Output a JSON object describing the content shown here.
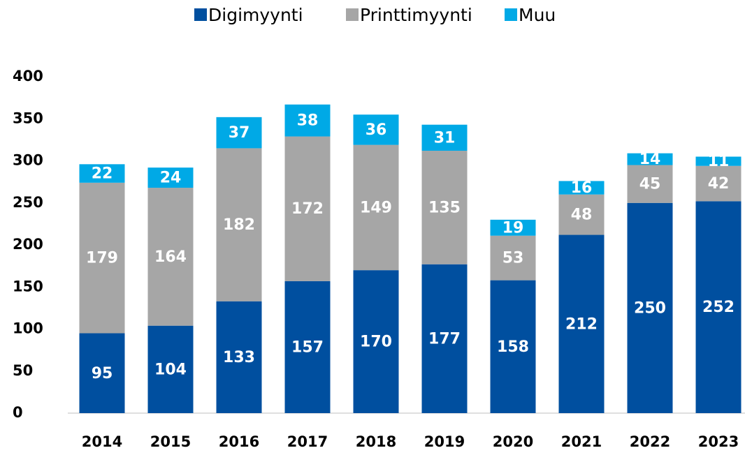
{
  "chart_data": {
    "type": "stacked_bar",
    "categories": [
      "2014",
      "2015",
      "2016",
      "2017",
      "2018",
      "2019",
      "2020",
      "2021",
      "2022",
      "2023"
    ],
    "series": [
      {
        "name": "Digimyynti",
        "color": "#004f9f",
        "values": [
          95,
          104,
          133,
          157,
          170,
          177,
          158,
          212,
          250,
          252
        ]
      },
      {
        "name": "Printtimyynti",
        "color": "#a6a6a6",
        "values": [
          179,
          164,
          182,
          172,
          149,
          135,
          53,
          48,
          45,
          42
        ]
      },
      {
        "name": "Muu",
        "color": "#00a9e6",
        "values": [
          22,
          24,
          37,
          38,
          36,
          31,
          19,
          16,
          14,
          11
        ]
      }
    ],
    "ylim": [
      0,
      400
    ],
    "yticks": [
      0,
      50,
      100,
      150,
      200,
      250,
      300,
      350,
      400
    ],
    "legend": "top"
  }
}
